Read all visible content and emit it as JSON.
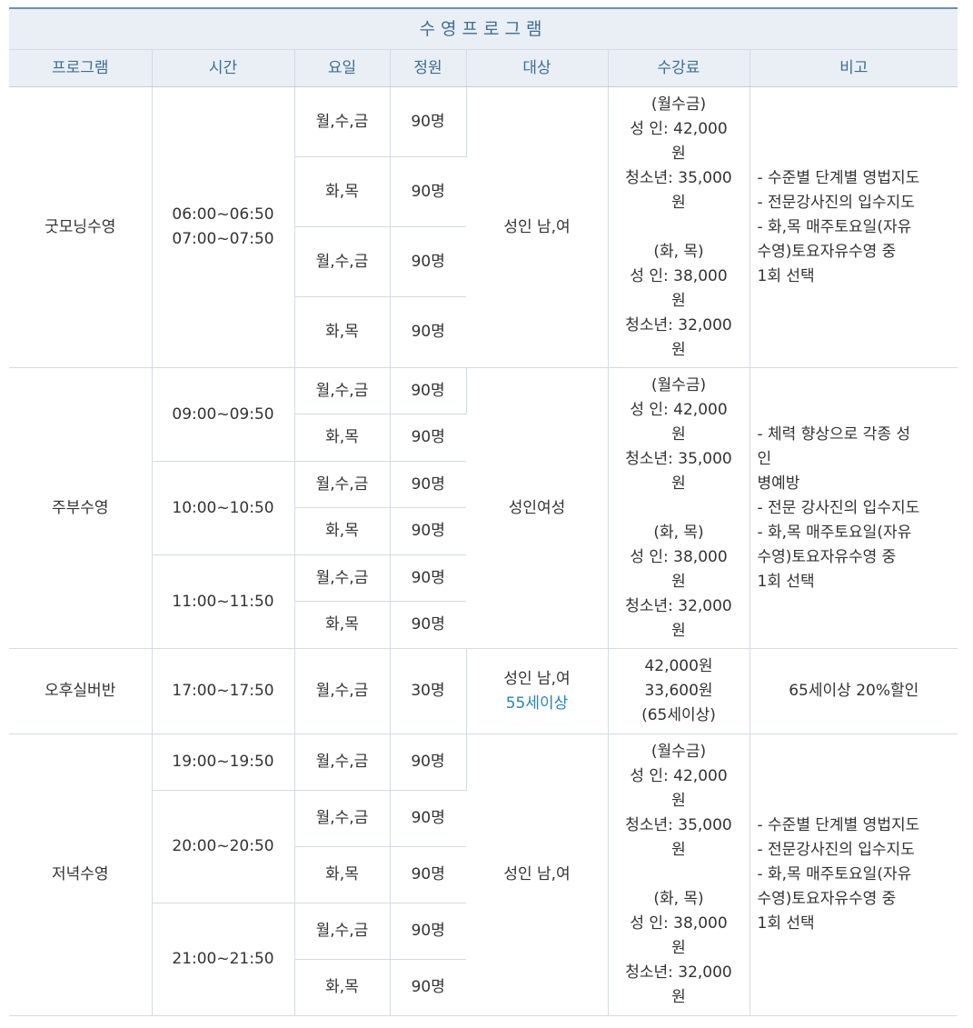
{
  "title": "수영프로그램",
  "headers": [
    "프로그램",
    "시간",
    "요일",
    "정원",
    "대상",
    "수강료",
    "비고"
  ],
  "fee_standard": "(월수금)\n성    인: 42,000\n원\n청소년: 35,000\n원\n\n(화, 목)\n성    인: 38,000\n원\n청소년: 32,000\n원",
  "sections": [
    {
      "program": "굿모닝수영",
      "times": [
        "06:00~06:50\n07:00~07:50"
      ],
      "rows": [
        {
          "days": "월,수,금",
          "cap": "90명"
        },
        {
          "days": "화,목",
          "cap": "90명"
        },
        {
          "days": "월,수,금",
          "cap": "90명"
        },
        {
          "days": "화,목",
          "cap": "90명"
        }
      ],
      "target": "성인 남,여",
      "note": "- 수준별 단계별 영법지도\n- 전문강사진의 입수지도\n- 화,목 매주토요일(자유\n  수영)토요자유수영 중\n    1회 선택"
    },
    {
      "program": "주부수영",
      "times": [
        "09:00~09:50",
        "10:00~10:50",
        "11:00~11:50"
      ],
      "rows": [
        {
          "days": "월,수,금",
          "cap": "90명"
        },
        {
          "days": "화,목",
          "cap": "90명"
        },
        {
          "days": "월,수,금",
          "cap": "90명"
        },
        {
          "days": "화,목",
          "cap": "90명"
        },
        {
          "days": "월,수,금",
          "cap": "90명"
        },
        {
          "days": "화,목",
          "cap": "90명"
        }
      ],
      "target": "성인여성",
      "note": "- 체력 향상으로 각종 성\n인\n   병예방\n- 전문 강사진의 입수지도\n- 화,목 매주토요일(자유\n  수영)토요자유수영 중\n    1회 선택"
    },
    {
      "program": "오후실버반",
      "time": "17:00~17:50",
      "days": "월,수,금",
      "cap": "30명",
      "target": "성인 남,여",
      "target_extra": "55세이상",
      "fee": "42,000원\n33,600원\n(65세이상)",
      "note": "65세이상 20%할인"
    },
    {
      "program": "저녁수영",
      "times": [
        "19:00~19:50",
        "20:00~20:50",
        "21:00~21:50"
      ],
      "rows": [
        {
          "days": "월,수,금",
          "cap": "90명"
        },
        {
          "days": "월,수,금",
          "cap": "90명"
        },
        {
          "days": "화,목",
          "cap": "90명"
        },
        {
          "days": "월,수,금",
          "cap": "90명"
        },
        {
          "days": "화,목",
          "cap": "90명"
        }
      ],
      "target": "성인 남,여",
      "note": "- 수준별 단계별 영법지도\n- 전문강사진의 입수지도\n- 화,목 매주토요일(자유\n  수영)토요자유수영 중\n    1회 선택"
    }
  ]
}
